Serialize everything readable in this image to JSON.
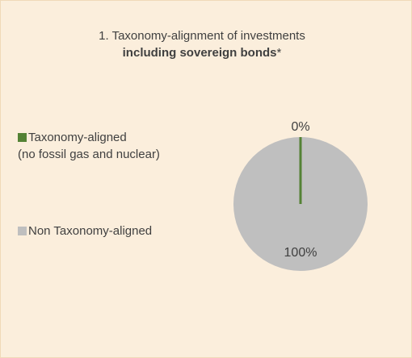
{
  "chart_data": {
    "type": "pie",
    "title": "1. Taxonomy-alignment of investments",
    "subtitle_bold": "including sovereign bonds",
    "subtitle_suffix": "*",
    "slices": [
      {
        "label": "Taxonomy-aligned (no fossil gas and nuclear)",
        "value": 0,
        "color": "#548235",
        "data_label": "0%"
      },
      {
        "label": "Non Taxonomy-aligned",
        "value": 100,
        "color": "#bfbfbf",
        "data_label": "100%"
      }
    ],
    "legend_position": "left"
  },
  "legend": {
    "item1_line1": "Taxonomy-aligned",
    "item1_line2": "(no fossil gas and nuclear)",
    "item2": "Non Taxonomy-aligned"
  },
  "colors": {
    "background": "#fbeedc",
    "aligned": "#548235",
    "non_aligned": "#bfbfbf",
    "text": "#404040"
  }
}
